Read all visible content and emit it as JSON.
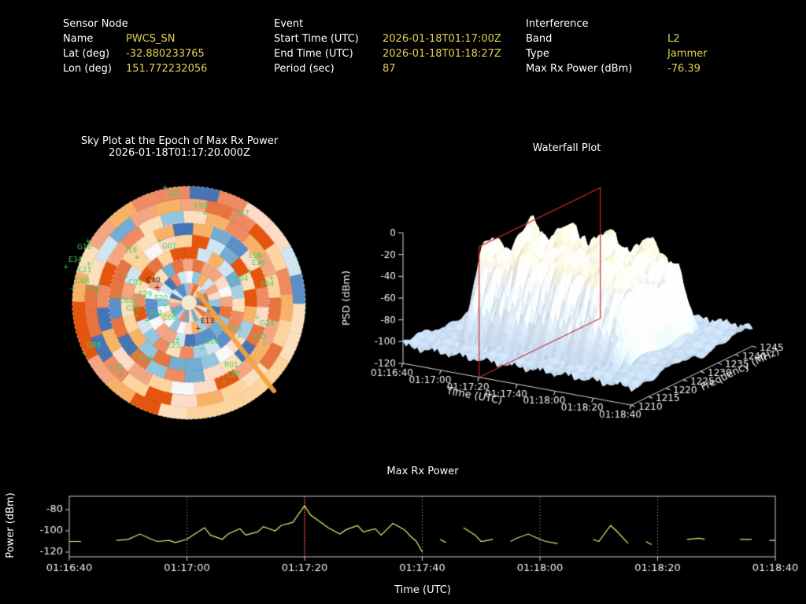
{
  "header": {
    "columns": [
      {
        "title": "Sensor Node",
        "rows": [
          {
            "label": "Name",
            "value": "PWCS_SN"
          },
          {
            "label": "Lat (deg)",
            "value": "-32.880233765"
          },
          {
            "label": "Lon (deg)",
            "value": "151.772232056"
          }
        ]
      },
      {
        "title": "Event",
        "rows": [
          {
            "label": "Start Time (UTC)",
            "value": "2026-01-18T01:17:00Z"
          },
          {
            "label": "End Time (UTC)",
            "value": "2026-01-18T01:18:27Z"
          },
          {
            "label": "Period (sec)",
            "value": "87"
          }
        ]
      },
      {
        "title": "Interference",
        "rows": [
          {
            "label": "Band",
            "value": "L2"
          },
          {
            "label": "Type",
            "value": "Jammer"
          },
          {
            "label": "Max Rx Power (dBm)",
            "value": "-76.39"
          }
        ]
      }
    ]
  },
  "colors": {
    "background": "#000000",
    "label_text": "#ffffff",
    "value_text": "#e2cf55",
    "satellite_label": "#3fd35f",
    "track": "#f2a33c",
    "marker_red": "#cc2a2a",
    "series_yellow": "#e9e97e",
    "axis": "#d6d6d6"
  },
  "chart_data": [
    {
      "type": "heatmap",
      "name": "sky-plot",
      "title": "Sky Plot at the Epoch of Max Rx Power",
      "subtitle": "2026-01-18T01:17:20.000Z",
      "rings": 9,
      "sectors": 24,
      "seed": 7,
      "palette_warm": [
        "#fddbc7",
        "#f4a582",
        "#ef8a62",
        "#e8743f",
        "#fdd49e",
        "#f7b267",
        "#fce0bb",
        "#e6550d"
      ],
      "palette_cool": [
        "#4575b4",
        "#74add1",
        "#a6cee3",
        "#d1e5f0",
        "#5b8fc9",
        "#92c5de",
        "#f7f7f7"
      ],
      "track": {
        "x1": 182,
        "y1": 140,
        "x2": 278,
        "y2": 264
      },
      "satellites": [
        {
          "id": "E05",
          "x": 143,
          "y": 9
        },
        {
          "id": "E09",
          "x": 177,
          "y": 25
        },
        {
          "id": "C27",
          "x": 229,
          "y": 34
        },
        {
          "id": "G16",
          "x": 28,
          "y": 77
        },
        {
          "id": "E34",
          "x": 17,
          "y": 93
        },
        {
          "id": "I18",
          "x": 90,
          "y": 81
        },
        {
          "id": "G01",
          "x": 136,
          "y": 76
        },
        {
          "id": "E06",
          "x": 246,
          "y": 88
        },
        {
          "id": "E36",
          "x": 250,
          "y": 97
        },
        {
          "id": "E21",
          "x": 29,
          "y": 106
        },
        {
          "id": "C08",
          "x": 26,
          "y": 120
        },
        {
          "id": "G13",
          "x": 39,
          "y": 129
        },
        {
          "id": "C05",
          "x": 93,
          "y": 122
        },
        {
          "id": "C40",
          "x": 116,
          "y": 119,
          "dark": true
        },
        {
          "id": "G04",
          "x": 227,
          "y": 117
        },
        {
          "id": "E04",
          "x": 261,
          "y": 124
        },
        {
          "id": "E29",
          "x": 106,
          "y": 137
        },
        {
          "id": "E20",
          "x": 126,
          "y": 142
        },
        {
          "id": "C02",
          "x": 82,
          "y": 145
        },
        {
          "id": "G22",
          "x": 90,
          "y": 155
        },
        {
          "id": "E31",
          "x": 120,
          "y": 161
        },
        {
          "id": "C06",
          "x": 137,
          "y": 167
        },
        {
          "id": "E13",
          "x": 185,
          "y": 171,
          "dark": true
        },
        {
          "id": "E10",
          "x": 220,
          "y": 181
        },
        {
          "id": "G24",
          "x": 260,
          "y": 174
        },
        {
          "id": "E15",
          "x": 252,
          "y": 191
        },
        {
          "id": "G06",
          "x": 190,
          "y": 197
        },
        {
          "id": "E25",
          "x": 142,
          "y": 202
        },
        {
          "id": "G08",
          "x": 40,
          "y": 202
        },
        {
          "id": "C35",
          "x": 70,
          "y": 230
        },
        {
          "id": "R18",
          "x": 106,
          "y": 219
        },
        {
          "id": "R01",
          "x": 215,
          "y": 227
        },
        {
          "id": "E27",
          "x": 218,
          "y": 239
        }
      ]
    },
    {
      "type": "area",
      "name": "waterfall-surface",
      "title": "Waterfall Plot",
      "xlabel": "Time (UTC)",
      "ylabel": "Frequency (MHz)",
      "zlabel": "PSD (dBm)",
      "time_ticks": [
        "01:16:40",
        "01:17:00",
        "01:17:20",
        "01:17:40",
        "01:18:00",
        "01:18:20",
        "01:18:40"
      ],
      "freq_ticks": [
        1210,
        1215,
        1220,
        1225,
        1230,
        1235,
        1240,
        1245
      ],
      "psd_ticks": [
        0,
        -20,
        -40,
        -60,
        -80,
        -100,
        -120
      ],
      "time_span_sec": 120,
      "freq_range": [
        1210,
        1245
      ],
      "psd_range": [
        -120,
        0
      ],
      "signal": {
        "t_start": 13,
        "t_end": 105,
        "f_low": 1214,
        "f_high": 1241.5,
        "peak_psd": -16,
        "noise_floor": -103
      },
      "slice_marker": {
        "t": 40
      }
    },
    {
      "type": "line",
      "name": "max-rx-power",
      "title": "Max Rx Power",
      "xlabel": "Time (UTC)",
      "ylabel": "Power (dBm)",
      "x_ticks": [
        "01:16:40",
        "01:17:00",
        "01:17:20",
        "01:17:40",
        "01:18:00",
        "01:18:20",
        "01:18:40"
      ],
      "x_tick_seconds": [
        0,
        20,
        40,
        60,
        80,
        100,
        120
      ],
      "y_ticks": [
        -80,
        -100,
        -120
      ],
      "ylim": [
        -124.4,
        -67.4
      ],
      "marker_t": 40,
      "points": [
        [
          0,
          -110
        ],
        [
          2,
          -110
        ],
        [
          3,
          null
        ],
        [
          5,
          -111
        ],
        [
          6,
          null
        ],
        [
          8,
          -109
        ],
        [
          10,
          -108
        ],
        [
          12,
          -103
        ],
        [
          14,
          -108
        ],
        [
          15,
          -110
        ],
        [
          17,
          -109
        ],
        [
          18,
          -111
        ],
        [
          20,
          -108
        ],
        [
          21,
          -104
        ],
        [
          23,
          -97
        ],
        [
          24,
          -104
        ],
        [
          26,
          -108
        ],
        [
          27,
          -103
        ],
        [
          29,
          -98
        ],
        [
          30,
          -104
        ],
        [
          32,
          -101
        ],
        [
          33,
          -96
        ],
        [
          35,
          -100
        ],
        [
          36,
          -95
        ],
        [
          38,
          -92
        ],
        [
          39,
          -84
        ],
        [
          40,
          -76.4
        ],
        [
          41,
          -85
        ],
        [
          43,
          -93
        ],
        [
          44,
          -97
        ],
        [
          46,
          -103
        ],
        [
          47,
          -99
        ],
        [
          49,
          -95
        ],
        [
          50,
          -101
        ],
        [
          52,
          -98
        ],
        [
          53,
          -104
        ],
        [
          55,
          -93
        ],
        [
          57,
          -99
        ],
        [
          58,
          -105
        ],
        [
          59,
          -110
        ],
        [
          60,
          -120
        ],
        [
          61,
          null
        ],
        [
          63,
          -108
        ],
        [
          64,
          -111
        ],
        [
          65,
          null
        ],
        [
          67,
          -97
        ],
        [
          69,
          -104
        ],
        [
          70,
          -110
        ],
        [
          72,
          -108
        ],
        [
          73,
          null
        ],
        [
          75,
          -110
        ],
        [
          76,
          -107
        ],
        [
          78,
          -103
        ],
        [
          80,
          -108
        ],
        [
          81,
          -110
        ],
        [
          83,
          -112
        ],
        [
          84,
          null
        ],
        [
          86,
          -109
        ],
        [
          87,
          null
        ],
        [
          89,
          -108
        ],
        [
          90,
          -110
        ],
        [
          92,
          -95
        ],
        [
          93,
          -100
        ],
        [
          95,
          -112
        ],
        [
          96,
          null
        ],
        [
          98,
          -110
        ],
        [
          99,
          -113
        ],
        [
          100,
          null
        ],
        [
          102,
          -111
        ],
        [
          103,
          null
        ],
        [
          105,
          -108
        ],
        [
          107,
          -107
        ],
        [
          108,
          -108
        ],
        [
          109,
          null
        ],
        [
          111,
          -109
        ],
        [
          112,
          null
        ],
        [
          114,
          -108
        ],
        [
          116,
          -108
        ],
        [
          117,
          null
        ],
        [
          119,
          -109
        ],
        [
          120,
          -109
        ]
      ]
    }
  ]
}
